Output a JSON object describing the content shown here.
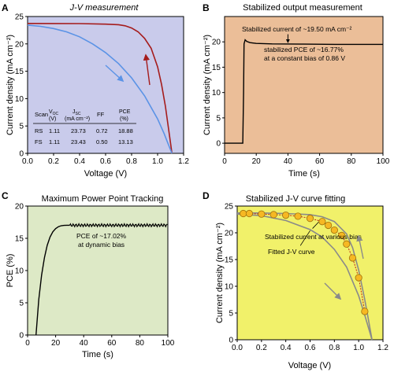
{
  "colors": {
    "A_bg": "#c9cbeb",
    "B_bg": "#ebbe98",
    "C_bg": "#dde9c6",
    "D_bg": "#f1f16a",
    "rs_curve": "#a51c1c",
    "fs_curve": "#5b93e6",
    "black": "#000000",
    "fit_grey": "#8a8a8a",
    "dot_fill": "#f6b823",
    "dot_stroke": "#a0700a",
    "dashed_red": "#c0201a"
  },
  "chart_data": [
    {
      "panel": "A",
      "type": "line",
      "title": "J-V measurement",
      "xlabel": "Voltage (V)",
      "ylabel": "Current density (mA cm⁻²)",
      "xlim": [
        0,
        1.2
      ],
      "ylim": [
        0,
        25
      ],
      "xticks": [
        0.0,
        0.2,
        0.4,
        0.6,
        0.8,
        1.0,
        1.2
      ],
      "xtick_labels": [
        "0.0",
        "0.2",
        "0.4",
        "0.6",
        "0.8",
        "1.0",
        "1.2"
      ],
      "yticks": [
        0,
        5,
        10,
        15,
        20,
        25
      ],
      "ytick_labels": [
        "0",
        "5",
        "10",
        "15",
        "20",
        "25"
      ],
      "series": [
        {
          "name": "RS",
          "color_key": "rs_curve",
          "x": [
            0,
            0.2,
            0.4,
            0.6,
            0.7,
            0.75,
            0.8,
            0.85,
            0.9,
            0.95,
            1.0,
            1.03,
            1.06,
            1.08,
            1.1,
            1.11
          ],
          "y": [
            23.73,
            23.72,
            23.7,
            23.6,
            23.5,
            23.3,
            22.9,
            22.2,
            21.0,
            19.2,
            15.8,
            12.6,
            8.6,
            5.2,
            1.8,
            0
          ]
        },
        {
          "name": "FS",
          "color_key": "fs_curve",
          "x": [
            0,
            0.1,
            0.2,
            0.3,
            0.4,
            0.5,
            0.6,
            0.7,
            0.8,
            0.9,
            1.0,
            1.05,
            1.08,
            1.11
          ],
          "y": [
            23.43,
            23.2,
            22.8,
            22.2,
            21.3,
            20.0,
            18.4,
            16.4,
            13.8,
            10.5,
            6.3,
            3.6,
            1.8,
            0
          ]
        }
      ],
      "table": {
        "headers": [
          "Scan",
          "V_OC (V)",
          "J_SC (mA cm⁻²)",
          "FF",
          "PCE (%)"
        ],
        "rows": [
          [
            "RS",
            "1.11",
            "23.73",
            "0.72",
            "18.88"
          ],
          [
            "FS",
            "1.11",
            "23.43",
            "0.50",
            "13.13"
          ]
        ]
      }
    },
    {
      "panel": "B",
      "type": "line",
      "title": "Stabilized output measurement",
      "xlabel": "Time (s)",
      "ylabel": "Current density (mA cm⁻²)",
      "xlim": [
        0,
        100
      ],
      "ylim": [
        -2,
        25
      ],
      "xticks": [
        0,
        20,
        40,
        60,
        80,
        100
      ],
      "xtick_labels": [
        "0",
        "20",
        "40",
        "60",
        "80",
        "100"
      ],
      "yticks": [
        0,
        5,
        10,
        15,
        20
      ],
      "ytick_labels": [
        "0",
        "5",
        "10",
        "15",
        "20"
      ],
      "series": [
        {
          "color_key": "black",
          "x": [
            0,
            11.5,
            12,
            12.3,
            13,
            14,
            16,
            20,
            30,
            50,
            70,
            90,
            100
          ],
          "y": [
            0,
            0,
            10,
            19.6,
            20.4,
            20.1,
            19.85,
            19.7,
            19.6,
            19.55,
            19.5,
            19.5,
            19.5
          ]
        }
      ],
      "annotations": [
        "Stabilized current of ~19.50 mA cm⁻²",
        "stabilized PCE of ~16.77%",
        "at a constant bias of 0.86 V"
      ]
    },
    {
      "panel": "C",
      "type": "line",
      "title": "Maximum Power Point Tracking",
      "xlabel": "Time (s)",
      "ylabel": "PCE (%)",
      "xlim": [
        0,
        100
      ],
      "ylim": [
        0,
        20
      ],
      "xticks": [
        0,
        20,
        40,
        60,
        80,
        100
      ],
      "xtick_labels": [
        "0",
        "20",
        "40",
        "60",
        "80",
        "100"
      ],
      "yticks": [
        0,
        5,
        10,
        15,
        20
      ],
      "ytick_labels": [
        "0",
        "5",
        "10",
        "15",
        "20"
      ],
      "series": [
        {
          "color_key": "black",
          "x": [
            6,
            8,
            10,
            12,
            14,
            16,
            18,
            20,
            22,
            24,
            26,
            28,
            30,
            100
          ],
          "y": [
            0,
            5.5,
            9.3,
            12.0,
            13.9,
            15.2,
            16.0,
            16.5,
            16.8,
            16.95,
            17.0,
            17.02,
            17.02,
            17.02
          ]
        }
      ],
      "annotations": [
        "PCE of ~17.02%",
        "at dynamic bias"
      ]
    },
    {
      "panel": "D",
      "type": "scatter",
      "title": "Stabilized J-V curve fitting",
      "xlabel": "Voltage (V)",
      "ylabel": "Current density (mA cm⁻²)",
      "xlim": [
        0,
        1.2
      ],
      "ylim": [
        0,
        25
      ],
      "xticks": [
        0.0,
        0.2,
        0.4,
        0.6,
        0.8,
        1.0,
        1.2
      ],
      "xtick_labels": [
        "0.0",
        "0.2",
        "0.4",
        "0.6",
        "0.8",
        "1.0",
        "1.2"
      ],
      "yticks": [
        0,
        5,
        10,
        15,
        20,
        25
      ],
      "ytick_labels": [
        "0",
        "5",
        "10",
        "15",
        "20",
        "25"
      ],
      "points": {
        "x": [
          0.05,
          0.1,
          0.2,
          0.3,
          0.4,
          0.5,
          0.6,
          0.7,
          0.75,
          0.8,
          0.86,
          0.9,
          0.95,
          1.0,
          1.05
        ],
        "y": [
          23.6,
          23.6,
          23.5,
          23.4,
          23.3,
          23.1,
          22.7,
          22.1,
          21.4,
          20.5,
          19.5,
          17.9,
          15.3,
          11.6,
          5.3
        ]
      },
      "fit_lines": [
        {
          "x": [
            0,
            0.2,
            0.4,
            0.6,
            0.7,
            0.8,
            0.9,
            0.95,
            1.0,
            1.05,
            1.08,
            1.11
          ],
          "y": [
            23.7,
            23.7,
            23.6,
            23.4,
            23.0,
            22.1,
            19.8,
            17.2,
            13.0,
            7.5,
            3.8,
            0
          ]
        },
        {
          "x": [
            0,
            0.2,
            0.4,
            0.6,
            0.7,
            0.8,
            0.9,
            1.0,
            1.05,
            1.11
          ],
          "y": [
            23.5,
            23.2,
            22.3,
            20.6,
            19.2,
            16.9,
            13.6,
            8.2,
            4.6,
            0
          ]
        }
      ],
      "annotations": [
        "Stabilized current at various bias",
        "Fitted J-V curve"
      ]
    }
  ],
  "panel_labels": [
    "A",
    "B",
    "C",
    "D"
  ]
}
